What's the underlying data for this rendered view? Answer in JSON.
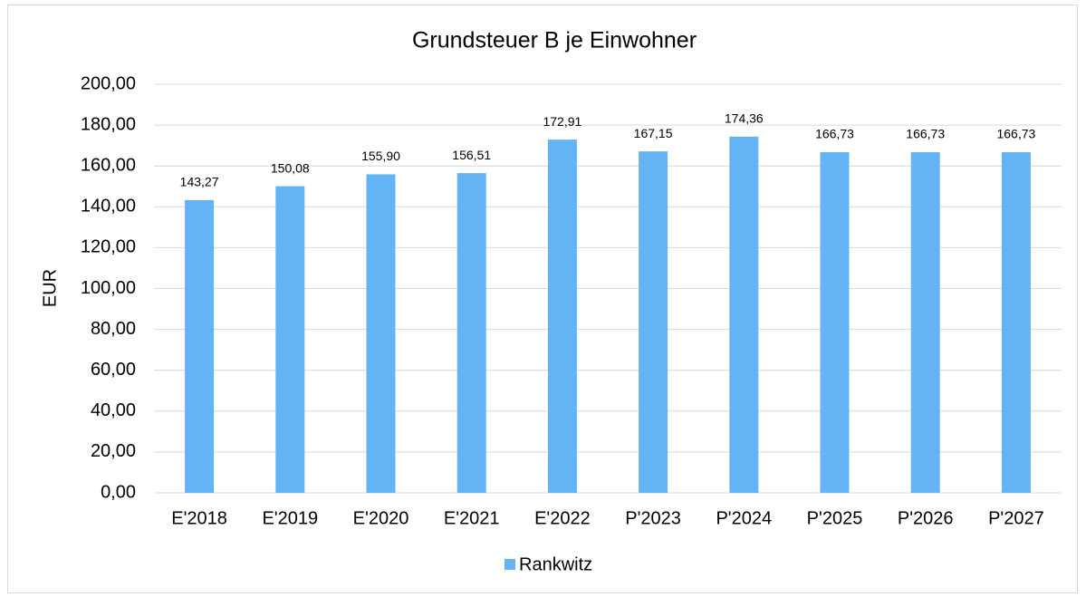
{
  "chart_data": {
    "type": "bar",
    "title": "Grundsteuer B je Einwohner",
    "y_label": "EUR",
    "categories": [
      "E'2018",
      "E'2019",
      "E'2020",
      "E'2021",
      "E'2022",
      "P'2023",
      "P'2024",
      "P'2025",
      "P'2026",
      "P'2027"
    ],
    "series": [
      {
        "name": "Rankwitz",
        "color": "#63b3f5",
        "values": [
          143.27,
          150.08,
          155.9,
          156.51,
          172.91,
          167.15,
          174.36,
          166.73,
          166.73,
          166.73
        ],
        "value_labels": [
          "143,27",
          "150,08",
          "155,90",
          "156,51",
          "172,91",
          "167,15",
          "174,36",
          "166,73",
          "166,73",
          "166,73"
        ]
      }
    ],
    "ylim": [
      0,
      200
    ],
    "yticks": [
      {
        "value": 0,
        "label": "0,00"
      },
      {
        "value": 20,
        "label": "20,00"
      },
      {
        "value": 40,
        "label": "40,00"
      },
      {
        "value": 60,
        "label": "60,00"
      },
      {
        "value": 80,
        "label": "80,00"
      },
      {
        "value": 100,
        "label": "100,00"
      },
      {
        "value": 120,
        "label": "120,00"
      },
      {
        "value": 140,
        "label": "140,00"
      },
      {
        "value": 160,
        "label": "160,00"
      },
      {
        "value": 180,
        "label": "180,00"
      },
      {
        "value": 200,
        "label": "200,00"
      }
    ],
    "grid": true,
    "legend": "bottom"
  }
}
